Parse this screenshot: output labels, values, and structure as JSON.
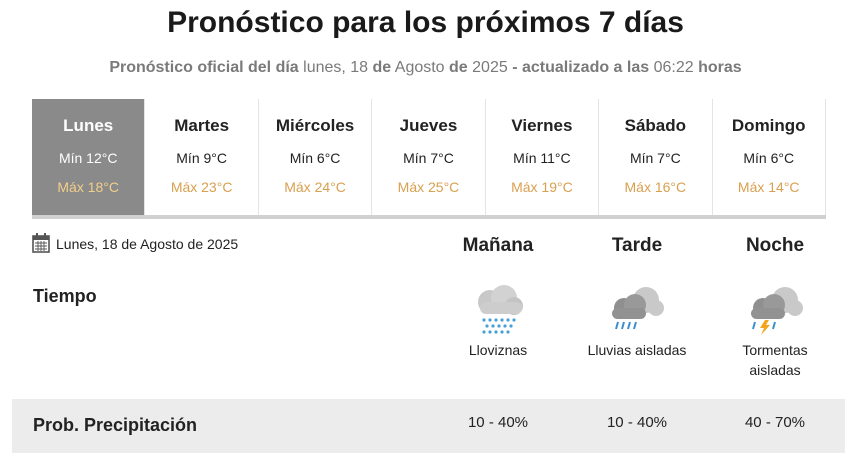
{
  "header": {
    "title": "Pronóstico para los próximos 7 días",
    "subtitle": [
      {
        "text": "Pronóstico oficial del día",
        "bold": true
      },
      {
        "text": "lunes, 18",
        "bold": false
      },
      {
        "text": "de",
        "bold": true
      },
      {
        "text": "Agosto",
        "bold": false
      },
      {
        "text": "de",
        "bold": true
      },
      {
        "text": "2025",
        "bold": false
      },
      {
        "text": "- actualizado a las",
        "bold": true
      },
      {
        "text": "06:22",
        "bold": false
      },
      {
        "text": "horas",
        "bold": true
      }
    ]
  },
  "days": [
    {
      "name": "Lunes",
      "min": "Mín 12°C",
      "max": "Máx 18°C",
      "selected": true
    },
    {
      "name": "Martes",
      "min": "Mín 9°C",
      "max": "Máx 23°C",
      "selected": false
    },
    {
      "name": "Miércoles",
      "min": "Mín 6°C",
      "max": "Máx 24°C",
      "selected": false
    },
    {
      "name": "Jueves",
      "min": "Mín 7°C",
      "max": "Máx 25°C",
      "selected": false
    },
    {
      "name": "Viernes",
      "min": "Mín 11°C",
      "max": "Máx 19°C",
      "selected": false
    },
    {
      "name": "Sábado",
      "min": "Mín 7°C",
      "max": "Máx 16°C",
      "selected": false
    },
    {
      "name": "Domingo",
      "min": "Mín 6°C",
      "max": "Máx 14°C",
      "selected": false
    }
  ],
  "detail": {
    "date": "Lunes, 18 de Agosto de 2025",
    "periods": [
      "Mañana",
      "Tarde",
      "Noche"
    ],
    "weather_label": "Tiempo",
    "conditions": [
      "Lloviznas",
      "Lluvias aisladas",
      "Tormentas aisladas"
    ],
    "precip_label": "Prob. Precipitación",
    "precip": [
      "10 - 40%",
      "10 - 40%",
      "40 - 70%"
    ]
  }
}
